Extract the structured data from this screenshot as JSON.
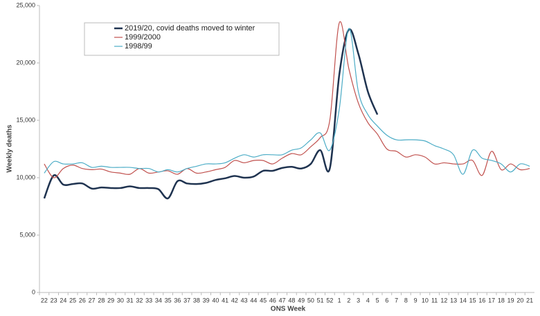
{
  "chart_data": {
    "type": "line",
    "xlabel": "ONS Week",
    "ylabel": "Weekly deaths",
    "categories": [
      "22",
      "23",
      "24",
      "25",
      "26",
      "27",
      "28",
      "29",
      "30",
      "31",
      "32",
      "33",
      "34",
      "35",
      "36",
      "37",
      "38",
      "39",
      "40",
      "41",
      "42",
      "43",
      "44",
      "45",
      "46",
      "47",
      "48",
      "49",
      "50",
      "51",
      "52",
      "1",
      "2",
      "3",
      "4",
      "5",
      "6",
      "7",
      "8",
      "9",
      "10",
      "11",
      "12",
      "13",
      "14",
      "15",
      "16",
      "17",
      "18",
      "19",
      "20",
      "21"
    ],
    "ylim": [
      0,
      25000
    ],
    "yticks": [
      0,
      {
        "value": 5000,
        "label": "5,000"
      },
      {
        "value": 10000,
        "label": "10,000"
      },
      {
        "value": 15000,
        "label": "15,000"
      },
      {
        "value": 20000,
        "label": "20,000"
      },
      {
        "value": 25000,
        "label": "25,000"
      }
    ],
    "series": [
      {
        "name": "2019/20, covid deaths moved to winter",
        "color": "#1f3350",
        "width": 2.5,
        "values": [
          8200,
          10200,
          9400,
          9450,
          9500,
          9050,
          9150,
          9100,
          9100,
          9250,
          9100,
          9100,
          9000,
          8200,
          9700,
          9500,
          9450,
          9550,
          9800,
          9950,
          10150,
          10000,
          10100,
          10600,
          10600,
          10850,
          10950,
          10800,
          11200,
          12400,
          10800,
          19000,
          22900,
          20800,
          17500,
          15500,
          null,
          null,
          null,
          null,
          null,
          null,
          null,
          null,
          null,
          null,
          null,
          null,
          null,
          null,
          null,
          null
        ]
      },
      {
        "name": "1999/2000",
        "color": "#c0504d",
        "width": 1.2,
        "values": [
          11200,
          10000,
          10800,
          11100,
          10800,
          10700,
          10750,
          10500,
          10400,
          10300,
          10800,
          10400,
          10500,
          10600,
          10300,
          10800,
          10400,
          10500,
          10700,
          10900,
          11500,
          11300,
          11500,
          11500,
          11200,
          11700,
          12100,
          12000,
          12700,
          13500,
          15000,
          23500,
          19500,
          16500,
          14800,
          13800,
          12500,
          12300,
          11800,
          12000,
          11800,
          11200,
          11300,
          11200,
          11200,
          11500,
          10200,
          12300,
          10700,
          11200,
          10700,
          10800
        ]
      },
      {
        "name": "1998/99",
        "color": "#4bacc6",
        "width": 1.2,
        "values": [
          10400,
          11400,
          11200,
          11200,
          11300,
          10900,
          11000,
          10900,
          10900,
          10900,
          10800,
          10800,
          10500,
          10700,
          10500,
          10800,
          11000,
          11200,
          11200,
          11300,
          11700,
          12000,
          11800,
          12000,
          12000,
          12000,
          12400,
          12600,
          13300,
          13900,
          12400,
          16000,
          23000,
          17500,
          15500,
          14500,
          13700,
          13300,
          13300,
          13300,
          13200,
          12800,
          12500,
          12000,
          10300,
          12400,
          11700,
          11500,
          11200,
          10500,
          11200,
          11000
        ]
      }
    ]
  }
}
